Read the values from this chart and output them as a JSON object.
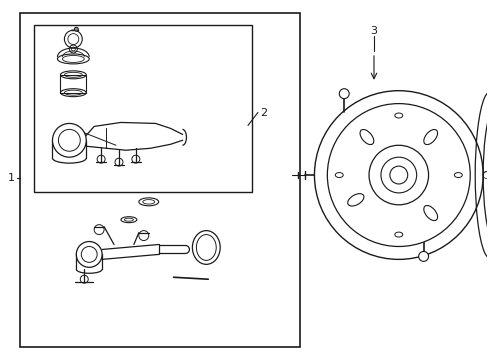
{
  "bg_color": "#ffffff",
  "line_color": "#1a1a1a",
  "label_1": "1",
  "label_2": "2",
  "label_3": "3",
  "fig_width": 4.89,
  "fig_height": 3.6,
  "dpi": 100
}
